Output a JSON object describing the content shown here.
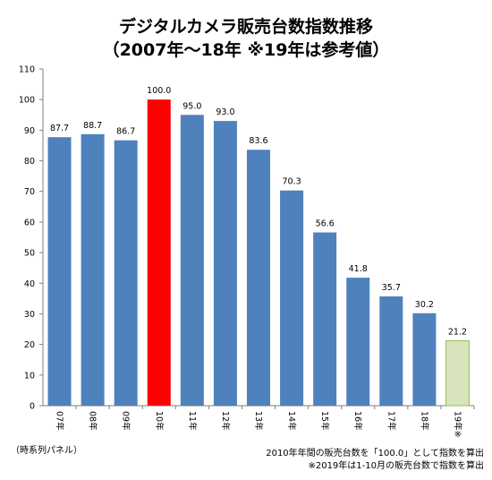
{
  "chart_data": {
    "type": "bar",
    "title": "デジタルカメラ販売台数指数推移",
    "subtitle": "（2007年～18年 ※19年は参考値）",
    "categories": [
      "07年",
      "08年",
      "09年",
      "10年",
      "11年",
      "12年",
      "13年",
      "14年",
      "15年",
      "16年",
      "17年",
      "18年",
      "19年※"
    ],
    "values": [
      87.7,
      88.7,
      86.7,
      100.0,
      95.0,
      93.0,
      83.6,
      70.3,
      56.6,
      41.8,
      35.7,
      30.2,
      21.2
    ],
    "value_labels": [
      "87.7",
      "88.7",
      "86.7",
      "100.0",
      "95.0",
      "93.0",
      "83.6",
      "70.3",
      "56.6",
      "41.8",
      "35.7",
      "30.2",
      "21.2"
    ],
    "bar_styles": [
      "normal",
      "normal",
      "normal",
      "highlight",
      "normal",
      "normal",
      "normal",
      "normal",
      "normal",
      "normal",
      "normal",
      "normal",
      "reference"
    ],
    "ylim": [
      0,
      110
    ],
    "yticks": [
      "0",
      "10",
      "20",
      "30",
      "40",
      "50",
      "60",
      "70",
      "80",
      "90",
      "100",
      "110"
    ],
    "grid": false,
    "colors": {
      "normal": "#4f81bd",
      "highlight": "#ff0000",
      "reference_fill": "#d8e4bc",
      "reference_stroke": "#9bbb59"
    }
  },
  "notes": {
    "source": "（時系列パネル）",
    "note1": "2010年年間の販売台数を「100.0」として指数を算出",
    "note2": "※2019年は1-10月の販売台数で指数を算出"
  }
}
